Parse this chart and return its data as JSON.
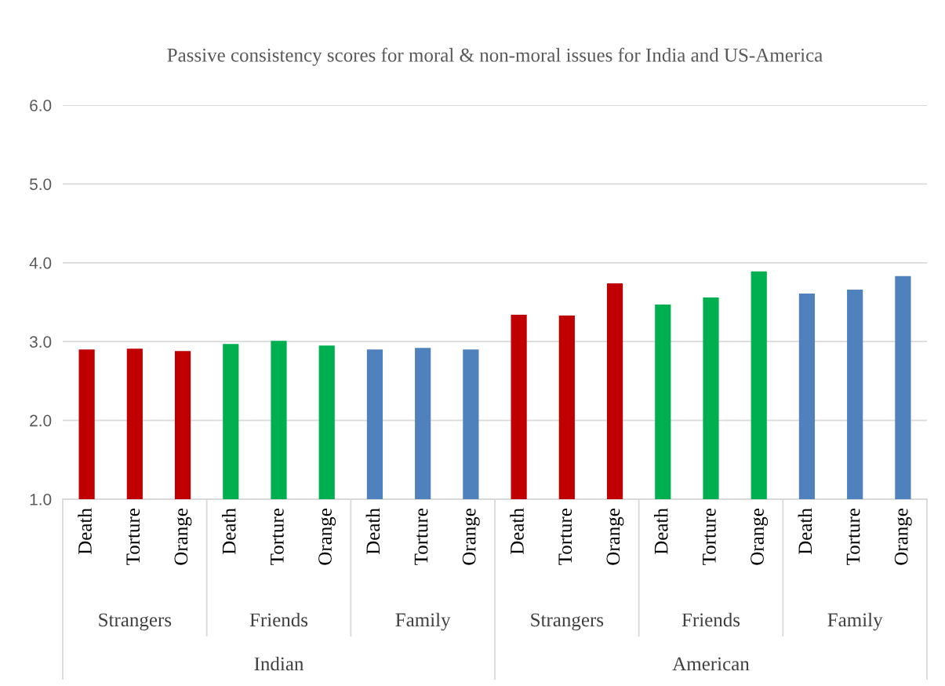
{
  "chart_data": {
    "type": "bar",
    "title": "Passive consistency scores for moral & non-moral issues for India and US-America",
    "categories": [
      "Death",
      "Torture",
      "Orange",
      "Death",
      "Torture",
      "Orange",
      "Death",
      "Torture",
      "Orange",
      "Death",
      "Torture",
      "Orange",
      "Death",
      "Torture",
      "Orange",
      "Death",
      "Torture",
      "Orange"
    ],
    "values": [
      2.9,
      2.91,
      2.88,
      2.97,
      3.01,
      2.95,
      2.9,
      2.92,
      2.9,
      3.34,
      3.33,
      3.74,
      3.47,
      3.56,
      3.89,
      3.61,
      3.66,
      3.83
    ],
    "colors": [
      "#c00000",
      "#c00000",
      "#c00000",
      "#00b050",
      "#00b050",
      "#00b050",
      "#4f81bd",
      "#4f81bd",
      "#4f81bd",
      "#c00000",
      "#c00000",
      "#c00000",
      "#00b050",
      "#00b050",
      "#00b050",
      "#4f81bd",
      "#4f81bd",
      "#4f81bd"
    ],
    "annotations": [
      "Strangers",
      "Friends",
      "Family",
      "Strangers",
      "Friends",
      "Family",
      "Indian",
      "American"
    ],
    "ylim": [
      1,
      6
    ],
    "yticks": [
      {
        "value": 1,
        "label": "1.0"
      },
      {
        "value": 2,
        "label": "2.0"
      },
      {
        "value": 3,
        "label": "3.0"
      },
      {
        "value": 4,
        "label": "4.0"
      },
      {
        "value": 5,
        "label": "5.0"
      },
      {
        "value": 6,
        "label": "6.0"
      }
    ],
    "grid": "y",
    "legend": false
  }
}
